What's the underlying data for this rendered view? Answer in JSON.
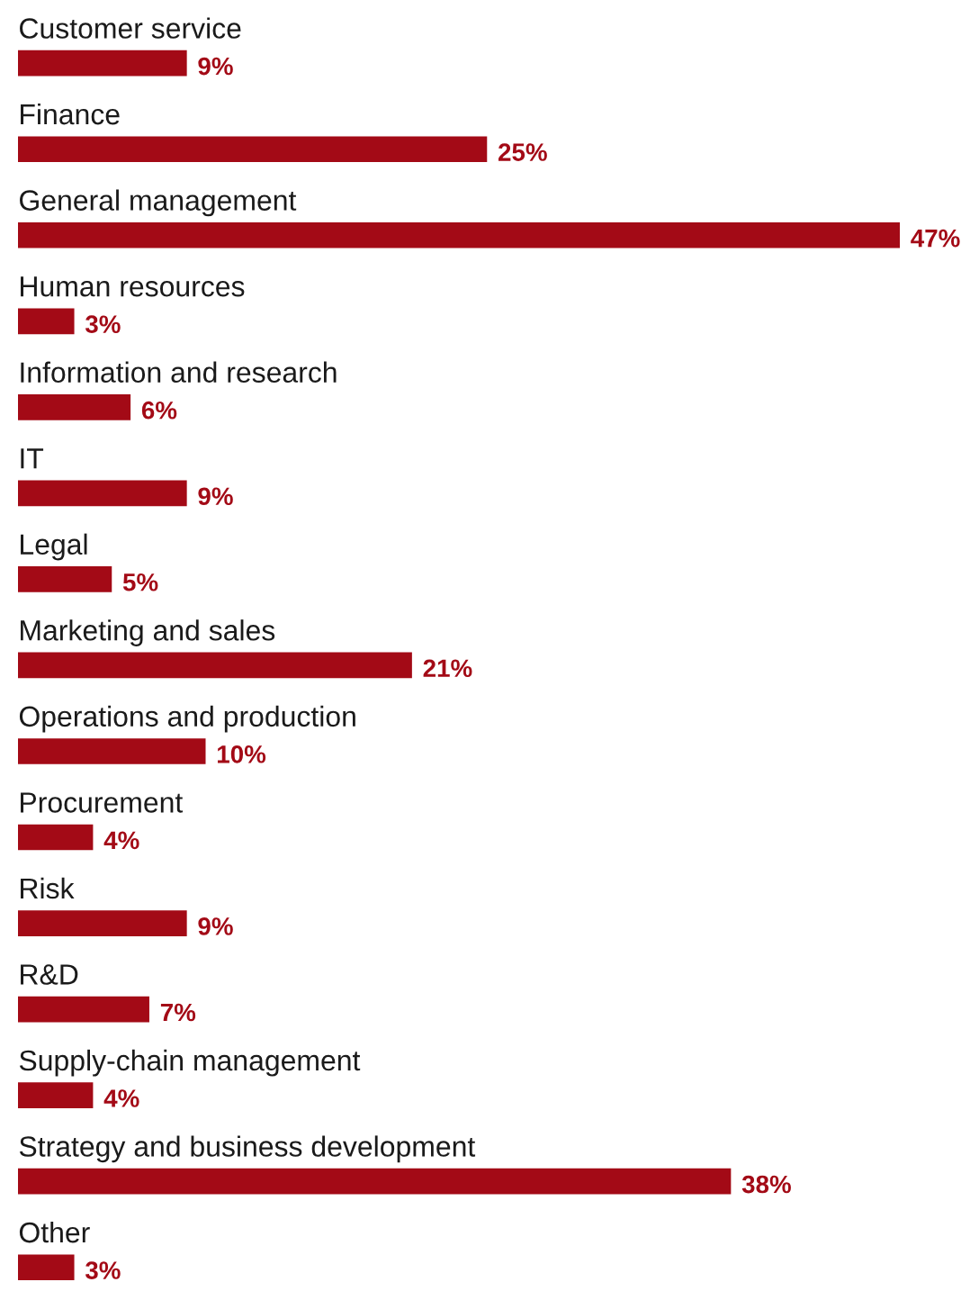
{
  "chart_data": {
    "type": "bar",
    "orientation": "horizontal",
    "categories": [
      "Customer service",
      "Finance",
      "General management",
      "Human resources",
      "Information and research",
      "IT",
      "Legal",
      "Marketing and sales",
      "Operations and production",
      "Procurement",
      "Risk",
      "R&D",
      "Supply-chain management",
      "Strategy and business development",
      "Other"
    ],
    "values": [
      9,
      25,
      47,
      3,
      6,
      9,
      5,
      21,
      10,
      4,
      9,
      7,
      4,
      38,
      3
    ],
    "value_labels": [
      "9%",
      "25%",
      "47%",
      "3%",
      "6%",
      "9%",
      "5%",
      "21%",
      "10%",
      "4%",
      "9%",
      "7%",
      "4%",
      "38%",
      "3%"
    ],
    "color": "#a30a16",
    "data_labels": false
  }
}
